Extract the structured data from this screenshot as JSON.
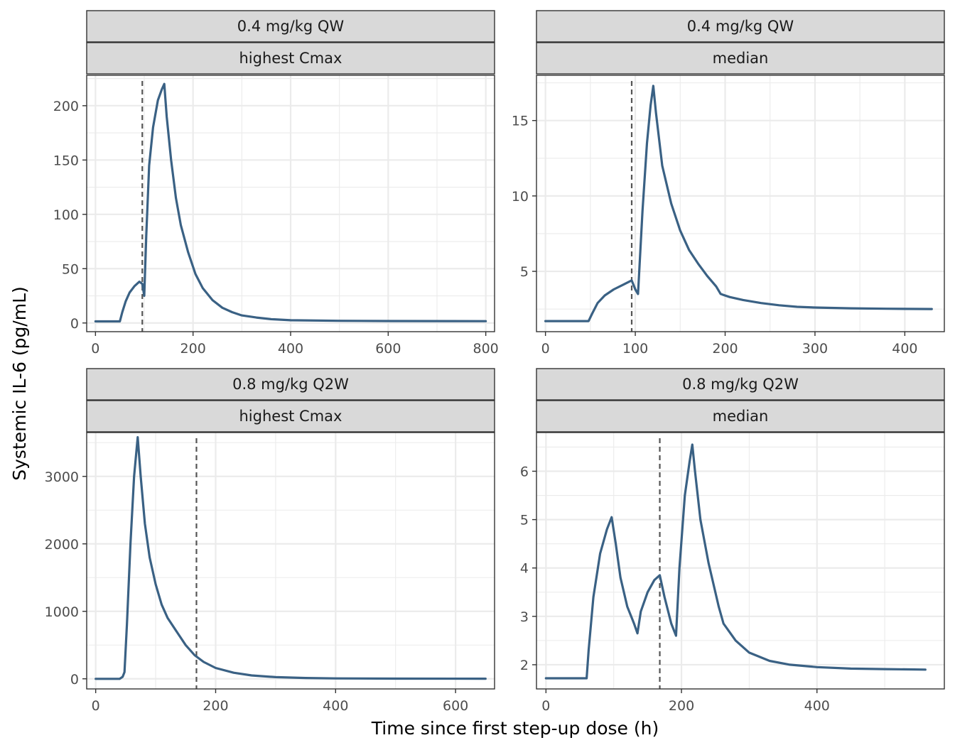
{
  "chart_data": {
    "type": "line",
    "xlabel": "Time since first step-up dose (h)",
    "ylabel": "Systemic IL-6 (pg/mL)",
    "line_color": "#3a6184",
    "dashed_line_color": "#555555",
    "grid": true,
    "panels": [
      {
        "strip_top": "0.4 mg/kg QW",
        "strip_bottom": "highest Cmax",
        "xlim": [
          -18,
          818
        ],
        "ylim": [
          -8,
          228
        ],
        "xticks": [
          0,
          200,
          400,
          600,
          800
        ],
        "yticks": [
          0,
          50,
          100,
          150,
          200
        ],
        "vline_x": 96,
        "points": [
          [
            0,
            1.5
          ],
          [
            50,
            1.5
          ],
          [
            55,
            10
          ],
          [
            62,
            20
          ],
          [
            70,
            28
          ],
          [
            80,
            34
          ],
          [
            90,
            38
          ],
          [
            96,
            36
          ],
          [
            100,
            25
          ],
          [
            104,
            80
          ],
          [
            110,
            145
          ],
          [
            118,
            180
          ],
          [
            128,
            205
          ],
          [
            136,
            215
          ],
          [
            141,
            220
          ],
          [
            146,
            190
          ],
          [
            155,
            150
          ],
          [
            165,
            115
          ],
          [
            175,
            90
          ],
          [
            190,
            65
          ],
          [
            205,
            45
          ],
          [
            220,
            32
          ],
          [
            240,
            21
          ],
          [
            260,
            14
          ],
          [
            280,
            10
          ],
          [
            300,
            7
          ],
          [
            330,
            5
          ],
          [
            360,
            3.5
          ],
          [
            400,
            2.5
          ],
          [
            500,
            2
          ],
          [
            600,
            1.8
          ],
          [
            800,
            1.7
          ]
        ]
      },
      {
        "strip_top": "0.4 mg/kg QW",
        "strip_bottom": "median",
        "xlim": [
          -10,
          444
        ],
        "ylim": [
          1.0,
          18.0
        ],
        "xticks": [
          0,
          100,
          200,
          300,
          400
        ],
        "yticks": [
          5,
          10,
          15
        ],
        "vline_x": 96,
        "points": [
          [
            0,
            1.7
          ],
          [
            48,
            1.7
          ],
          [
            52,
            2.2
          ],
          [
            58,
            2.9
          ],
          [
            66,
            3.4
          ],
          [
            76,
            3.8
          ],
          [
            86,
            4.1
          ],
          [
            96,
            4.4
          ],
          [
            100,
            3.8
          ],
          [
            103,
            3.5
          ],
          [
            108,
            9
          ],
          [
            113,
            13.5
          ],
          [
            117,
            16
          ],
          [
            120,
            17.3
          ],
          [
            123,
            15.5
          ],
          [
            130,
            12
          ],
          [
            140,
            9.5
          ],
          [
            150,
            7.7
          ],
          [
            160,
            6.4
          ],
          [
            170,
            5.5
          ],
          [
            180,
            4.7
          ],
          [
            190,
            4.0
          ],
          [
            195,
            3.5
          ],
          [
            205,
            3.3
          ],
          [
            220,
            3.1
          ],
          [
            240,
            2.9
          ],
          [
            260,
            2.75
          ],
          [
            280,
            2.65
          ],
          [
            300,
            2.6
          ],
          [
            340,
            2.55
          ],
          [
            380,
            2.52
          ],
          [
            430,
            2.5
          ]
        ]
      },
      {
        "strip_top": "0.8 mg/kg Q2W",
        "strip_bottom": "highest Cmax",
        "xlim": [
          -15,
          665
        ],
        "ylim": [
          -150,
          3650
        ],
        "xticks": [
          0,
          200,
          400,
          600
        ],
        "yticks": [
          0,
          1000,
          2000,
          3000
        ],
        "vline_x": 168,
        "points": [
          [
            0,
            0
          ],
          [
            40,
            0
          ],
          [
            45,
            30
          ],
          [
            48,
            100
          ],
          [
            52,
            800
          ],
          [
            58,
            2000
          ],
          [
            64,
            3000
          ],
          [
            70,
            3580
          ],
          [
            75,
            3000
          ],
          [
            82,
            2300
          ],
          [
            90,
            1800
          ],
          [
            100,
            1400
          ],
          [
            110,
            1100
          ],
          [
            120,
            900
          ],
          [
            135,
            700
          ],
          [
            150,
            500
          ],
          [
            165,
            350
          ],
          [
            180,
            250
          ],
          [
            200,
            160
          ],
          [
            230,
            90
          ],
          [
            260,
            50
          ],
          [
            300,
            25
          ],
          [
            350,
            12
          ],
          [
            400,
            6
          ],
          [
            500,
            3
          ],
          [
            650,
            2
          ]
        ]
      },
      {
        "strip_top": "0.8 mg/kg Q2W",
        "strip_bottom": "median",
        "xlim": [
          -14,
          588
        ],
        "ylim": [
          1.5,
          6.8
        ],
        "xticks": [
          0,
          200,
          400
        ],
        "yticks": [
          2,
          3,
          4,
          5,
          6
        ],
        "vline_x": 168,
        "points": [
          [
            0,
            1.72
          ],
          [
            60,
            1.72
          ],
          [
            63,
            2.3
          ],
          [
            70,
            3.4
          ],
          [
            80,
            4.3
          ],
          [
            90,
            4.8
          ],
          [
            97,
            5.05
          ],
          [
            103,
            4.5
          ],
          [
            110,
            3.8
          ],
          [
            120,
            3.2
          ],
          [
            130,
            2.85
          ],
          [
            135,
            2.65
          ],
          [
            140,
            3.1
          ],
          [
            150,
            3.5
          ],
          [
            160,
            3.75
          ],
          [
            168,
            3.85
          ],
          [
            175,
            3.4
          ],
          [
            185,
            2.85
          ],
          [
            192,
            2.6
          ],
          [
            197,
            4.0
          ],
          [
            205,
            5.5
          ],
          [
            212,
            6.2
          ],
          [
            216,
            6.55
          ],
          [
            220,
            6.0
          ],
          [
            228,
            5.0
          ],
          [
            240,
            4.1
          ],
          [
            255,
            3.2
          ],
          [
            262,
            2.85
          ],
          [
            280,
            2.5
          ],
          [
            300,
            2.25
          ],
          [
            330,
            2.08
          ],
          [
            360,
            2.0
          ],
          [
            400,
            1.95
          ],
          [
            450,
            1.92
          ],
          [
            500,
            1.91
          ],
          [
            560,
            1.9
          ]
        ]
      }
    ]
  }
}
